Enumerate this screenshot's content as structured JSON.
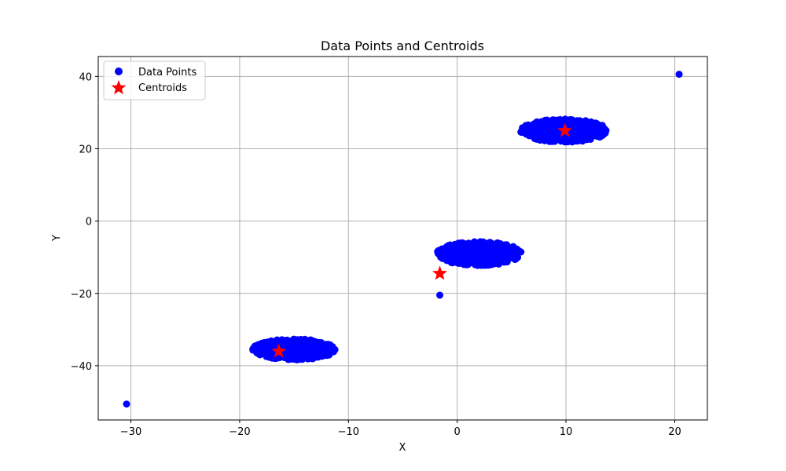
{
  "chart_data": {
    "type": "scatter",
    "title": "Data Points and Centroids",
    "xlabel": "X",
    "ylabel": "Y",
    "xlim": [
      -33,
      23
    ],
    "ylim": [
      -55,
      45.5
    ],
    "xticks": [
      -30,
      -20,
      -10,
      0,
      10,
      20
    ],
    "yticks": [
      -40,
      -20,
      0,
      20,
      40
    ],
    "xtick_labels": [
      "−30",
      "−20",
      "−10",
      "0",
      "10",
      "20"
    ],
    "ytick_labels": [
      "−40",
      "−20",
      "0",
      "20",
      "40"
    ],
    "grid": true,
    "legend_position": "top-left",
    "clusters": [
      {
        "center": [
          -15,
          -35.5
        ],
        "x_half_range": 3.8,
        "y_half_range": 2.9
      },
      {
        "center": [
          2,
          -9
        ],
        "x_half_range": 3.9,
        "y_half_range": 3.3
      },
      {
        "center": [
          9.8,
          25
        ],
        "x_half_range": 4.0,
        "y_half_range": 3.2
      }
    ],
    "series": [
      {
        "name": "Data Points",
        "color": "#0000ff",
        "marker": "circle",
        "outliers": [
          [
            -30.4,
            -50.6
          ],
          [
            -1.6,
            -20.5
          ],
          [
            20.4,
            40.6
          ]
        ]
      },
      {
        "name": "Centroids",
        "color": "#ff0000",
        "marker": "star",
        "points": [
          [
            -16.4,
            -36.0
          ],
          [
            -1.6,
            -14.5
          ],
          [
            9.9,
            25.0
          ]
        ]
      }
    ]
  }
}
